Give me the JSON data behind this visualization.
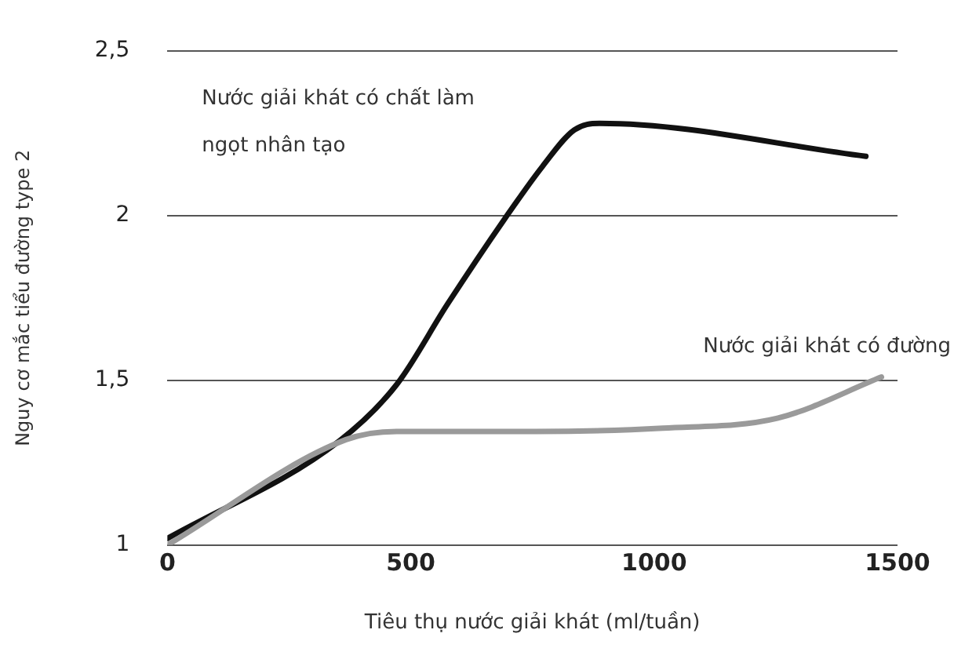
{
  "chart_data": {
    "type": "line",
    "xlabel": "Tiêu thụ nước giải khát (ml/tuần)",
    "ylabel": "Nguy cơ mắc tiểu đường type 2",
    "xlim": [
      0,
      1500
    ],
    "xticks": [
      0,
      500,
      1000,
      1500
    ],
    "ylim": [
      1,
      2.5
    ],
    "yticks": [
      1,
      {
        "value": 1.5,
        "label": "1,5"
      },
      2,
      {
        "value": 2.5,
        "label": "2,5"
      }
    ],
    "grid": "y",
    "legend": false,
    "marker": "none",
    "line_style": "solid",
    "series": [
      {
        "name": "Nước giải khát có đường",
        "color": "#9a9a9a",
        "x": [
          0,
          367,
          471,
          758,
          1018,
          1253,
          1467
        ],
        "values": [
          1,
          1.32,
          1.345,
          1.345,
          1.355,
          1.385,
          1.51
        ]
      },
      {
        "name": "Nước giải khát có chất làm ngọt nhân tạo",
        "color": "#111111",
        "x": [
          0,
          354,
          471,
          575,
          693,
          771,
          836,
          888,
          1435
        ],
        "values": [
          1.02,
          1.317,
          1.487,
          1.73,
          1.99,
          2.15,
          2.26,
          2.28,
          2.18
        ]
      }
    ]
  }
}
